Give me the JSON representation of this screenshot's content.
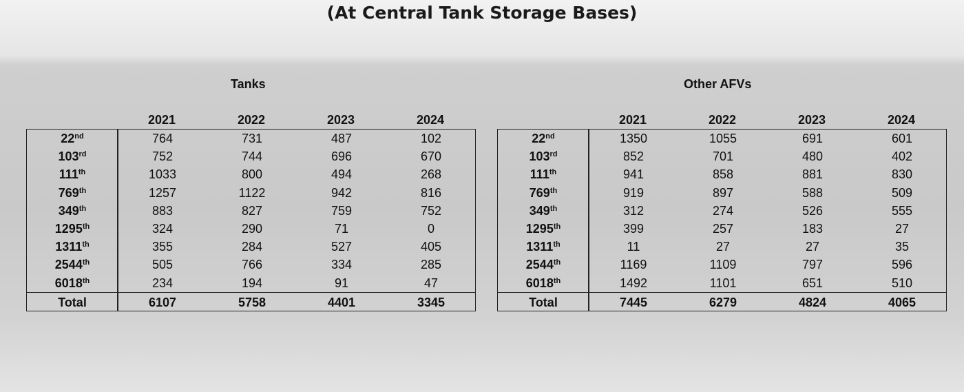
{
  "title": "(At Central Tank Storage Bases)",
  "tables": [
    {
      "caption": "Tanks",
      "columns": [
        "2021",
        "2022",
        "2023",
        "2024"
      ],
      "rows": [
        {
          "label": {
            "number": "22",
            "suffix": "nd"
          },
          "values": [
            764,
            731,
            487,
            102
          ]
        },
        {
          "label": {
            "number": "103",
            "suffix": "rd"
          },
          "values": [
            752,
            744,
            696,
            670
          ]
        },
        {
          "label": {
            "number": "111",
            "suffix": "th"
          },
          "values": [
            1033,
            800,
            494,
            268
          ]
        },
        {
          "label": {
            "number": "769",
            "suffix": "th"
          },
          "values": [
            1257,
            1122,
            942,
            816
          ]
        },
        {
          "label": {
            "number": "349",
            "suffix": "th"
          },
          "values": [
            883,
            827,
            759,
            752
          ]
        },
        {
          "label": {
            "number": "1295",
            "suffix": "th"
          },
          "values": [
            324,
            290,
            71,
            0
          ]
        },
        {
          "label": {
            "number": "1311",
            "suffix": "th"
          },
          "values": [
            355,
            284,
            527,
            405
          ]
        },
        {
          "label": {
            "number": "2544",
            "suffix": "th"
          },
          "values": [
            505,
            766,
            334,
            285
          ]
        },
        {
          "label": {
            "number": "6018",
            "suffix": "th"
          },
          "values": [
            234,
            194,
            91,
            47
          ]
        }
      ],
      "total": {
        "label": "Total",
        "values": [
          6107,
          5758,
          4401,
          3345
        ]
      }
    },
    {
      "caption": "Other AFVs",
      "columns": [
        "2021",
        "2022",
        "2023",
        "2024"
      ],
      "rows": [
        {
          "label": {
            "number": "22",
            "suffix": "nd"
          },
          "values": [
            1350,
            1055,
            691,
            601
          ]
        },
        {
          "label": {
            "number": "103",
            "suffix": "rd"
          },
          "values": [
            852,
            701,
            480,
            402
          ]
        },
        {
          "label": {
            "number": "111",
            "suffix": "th"
          },
          "values": [
            941,
            858,
            881,
            830
          ]
        },
        {
          "label": {
            "number": "769",
            "suffix": "th"
          },
          "values": [
            919,
            897,
            588,
            509
          ]
        },
        {
          "label": {
            "number": "349",
            "suffix": "th"
          },
          "values": [
            312,
            274,
            526,
            555
          ]
        },
        {
          "label": {
            "number": "1295",
            "suffix": "th"
          },
          "values": [
            399,
            257,
            183,
            27
          ]
        },
        {
          "label": {
            "number": "1311",
            "suffix": "th"
          },
          "values": [
            11,
            27,
            27,
            35
          ]
        },
        {
          "label": {
            "number": "2544",
            "suffix": "th"
          },
          "values": [
            1169,
            1109,
            797,
            596
          ]
        },
        {
          "label": {
            "number": "6018",
            "suffix": "th"
          },
          "values": [
            1492,
            1101,
            651,
            510
          ]
        }
      ],
      "total": {
        "label": "Total",
        "values": [
          7445,
          6279,
          4824,
          4065
        ]
      }
    }
  ]
}
